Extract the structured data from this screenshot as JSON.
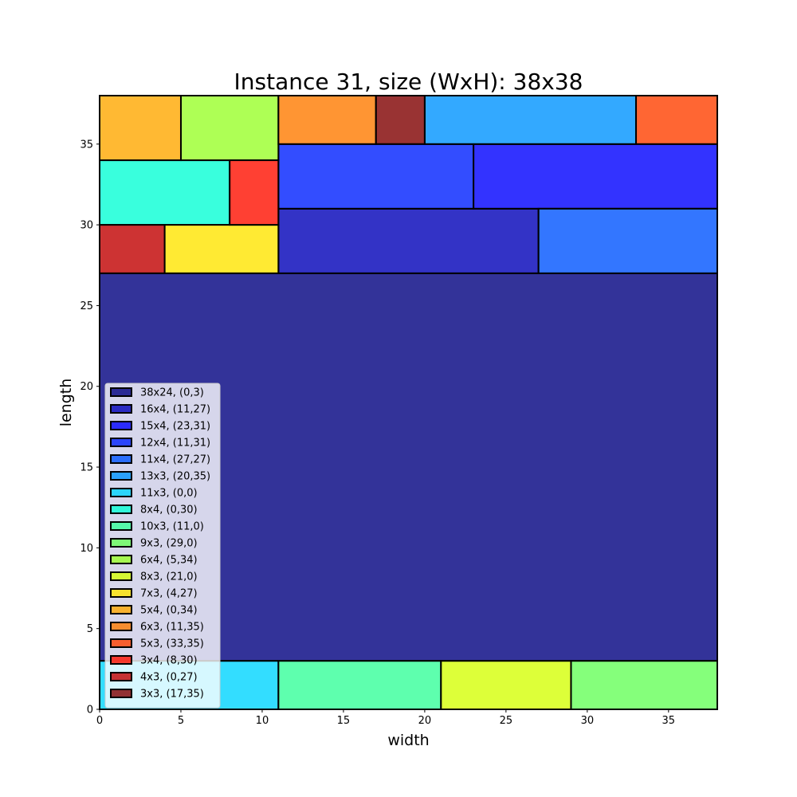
{
  "chart_data": {
    "type": "rectangle-packing",
    "title": "Instance 31, size (WxH): 38x38",
    "xlabel": "width",
    "ylabel": "length",
    "xlim": [
      0,
      38
    ],
    "ylim": [
      0,
      38
    ],
    "xticks": [
      0,
      5,
      10,
      15,
      20,
      25,
      30,
      35
    ],
    "yticks": [
      0,
      5,
      10,
      15,
      20,
      25,
      30,
      35
    ],
    "grid": false,
    "legend_position": "lower-left",
    "rectangles": [
      {
        "label": "38x24, (0,3)",
        "x": 0,
        "y": 3,
        "w": 38,
        "h": 24,
        "color": "#000080"
      },
      {
        "label": "16x4, (11,27)",
        "x": 11,
        "y": 27,
        "w": 16,
        "h": 4,
        "color": "#0000b8"
      },
      {
        "label": "15x4, (23,31)",
        "x": 23,
        "y": 31,
        "w": 15,
        "h": 4,
        "color": "#0000ff"
      },
      {
        "label": "12x4, (11,31)",
        "x": 11,
        "y": 31,
        "w": 12,
        "h": 4,
        "color": "#0020ff"
      },
      {
        "label": "11x4, (27,27)",
        "x": 27,
        "y": 27,
        "w": 11,
        "h": 4,
        "color": "#0054ff"
      },
      {
        "label": "13x3, (20,35)",
        "x": 20,
        "y": 35,
        "w": 13,
        "h": 3,
        "color": "#0094ff"
      },
      {
        "label": "11x3, (0,0)",
        "x": 0,
        "y": 0,
        "w": 11,
        "h": 3,
        "color": "#00d4ff"
      },
      {
        "label": "8x4, (0,30)",
        "x": 0,
        "y": 30,
        "w": 8,
        "h": 4,
        "color": "#08ffd4"
      },
      {
        "label": "10x3, (11,0)",
        "x": 11,
        "y": 0,
        "w": 10,
        "h": 3,
        "color": "#36ff9a"
      },
      {
        "label": "9x3, (29,0)",
        "x": 29,
        "y": 0,
        "w": 9,
        "h": 3,
        "color": "#66ff5a"
      },
      {
        "label": "6x4, (5,34)",
        "x": 5,
        "y": 34,
        "w": 6,
        "h": 4,
        "color": "#9aff2a"
      },
      {
        "label": "8x3, (21,0)",
        "x": 21,
        "y": 0,
        "w": 8,
        "h": 3,
        "color": "#d4ff08"
      },
      {
        "label": "7x3, (4,27)",
        "x": 4,
        "y": 27,
        "w": 7,
        "h": 3,
        "color": "#ffe500"
      },
      {
        "label": "5x4, (0,34)",
        "x": 0,
        "y": 34,
        "w": 5,
        "h": 4,
        "color": "#ffa700"
      },
      {
        "label": "6x3, (11,35)",
        "x": 11,
        "y": 35,
        "w": 6,
        "h": 3,
        "color": "#ff7b00"
      },
      {
        "label": "5x3, (33,35)",
        "x": 33,
        "y": 35,
        "w": 5,
        "h": 3,
        "color": "#ff4000"
      },
      {
        "label": "3x4, (8,30)",
        "x": 8,
        "y": 30,
        "w": 3,
        "h": 4,
        "color": "#ff1000"
      },
      {
        "label": "4x3, (0,27)",
        "x": 0,
        "y": 27,
        "w": 4,
        "h": 3,
        "color": "#c00000"
      },
      {
        "label": "3x3, (17,35)",
        "x": 17,
        "y": 35,
        "w": 3,
        "h": 3,
        "color": "#800000"
      }
    ]
  }
}
